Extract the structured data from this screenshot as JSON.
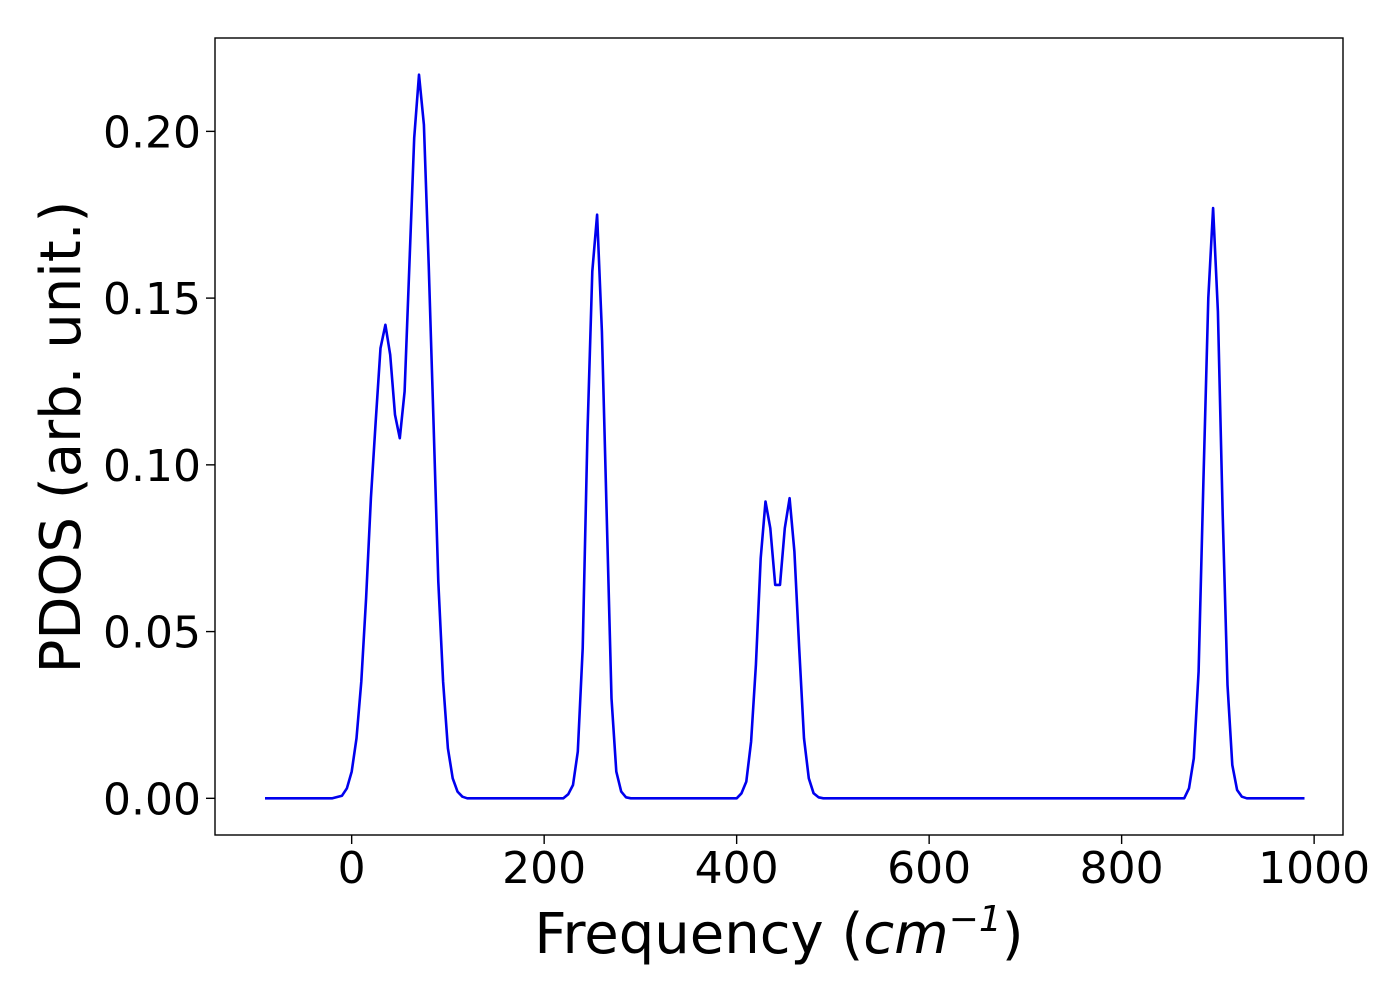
{
  "chart_data": {
    "type": "line",
    "title": "",
    "xlabel": "Frequency",
    "xlabel_unit_base": "cm",
    "xlabel_unit_exp": "−1",
    "ylabel": "PDOS (arb. unit.)",
    "xlim": [
      -142,
      1030
    ],
    "ylim": [
      -0.011,
      0.228
    ],
    "xticks": [
      0,
      200,
      400,
      600,
      800,
      1000
    ],
    "yticks": [
      0.0,
      0.05,
      0.1,
      0.15,
      0.2
    ],
    "xtick_labels": [
      "0",
      "200",
      "400",
      "600",
      "800",
      "1000"
    ],
    "ytick_labels": [
      "0.00",
      "0.05",
      "0.10",
      "0.15",
      "0.20"
    ],
    "grid": false,
    "line_color": "#0000ee",
    "series": [
      {
        "x": [
          -90,
          -20,
          -10,
          -5,
          0,
          5,
          10,
          15,
          20,
          25,
          30,
          35,
          40,
          45,
          50,
          55,
          60,
          65,
          70,
          75,
          80,
          85,
          90,
          95,
          100,
          105,
          110,
          115,
          120,
          130,
          220,
          225,
          230,
          235,
          240,
          245,
          250,
          255,
          260,
          265,
          270,
          275,
          280,
          285,
          290,
          300,
          400,
          405,
          410,
          415,
          420,
          425,
          430,
          435,
          440,
          445,
          450,
          455,
          460,
          465,
          470,
          475,
          480,
          485,
          490,
          500,
          865,
          870,
          875,
          880,
          885,
          890,
          895,
          900,
          905,
          910,
          915,
          920,
          925,
          930,
          940,
          990
        ],
        "y": [
          0.0,
          0.0,
          0.0008,
          0.003,
          0.008,
          0.018,
          0.035,
          0.06,
          0.09,
          0.113,
          0.135,
          0.142,
          0.133,
          0.115,
          0.108,
          0.122,
          0.16,
          0.198,
          0.217,
          0.202,
          0.16,
          0.113,
          0.065,
          0.035,
          0.015,
          0.006,
          0.002,
          0.0005,
          0.0,
          0.0,
          0.0,
          0.0012,
          0.004,
          0.014,
          0.045,
          0.11,
          0.158,
          0.175,
          0.14,
          0.085,
          0.03,
          0.008,
          0.002,
          0.0003,
          0.0,
          0.0,
          0.0,
          0.0015,
          0.005,
          0.017,
          0.04,
          0.072,
          0.089,
          0.081,
          0.064,
          0.064,
          0.081,
          0.09,
          0.074,
          0.045,
          0.018,
          0.006,
          0.0015,
          0.0003,
          0.0,
          0.0,
          0.0,
          0.003,
          0.012,
          0.038,
          0.095,
          0.15,
          0.177,
          0.146,
          0.085,
          0.034,
          0.01,
          0.0025,
          0.0005,
          0.0,
          0.0,
          0.0
        ]
      }
    ]
  }
}
